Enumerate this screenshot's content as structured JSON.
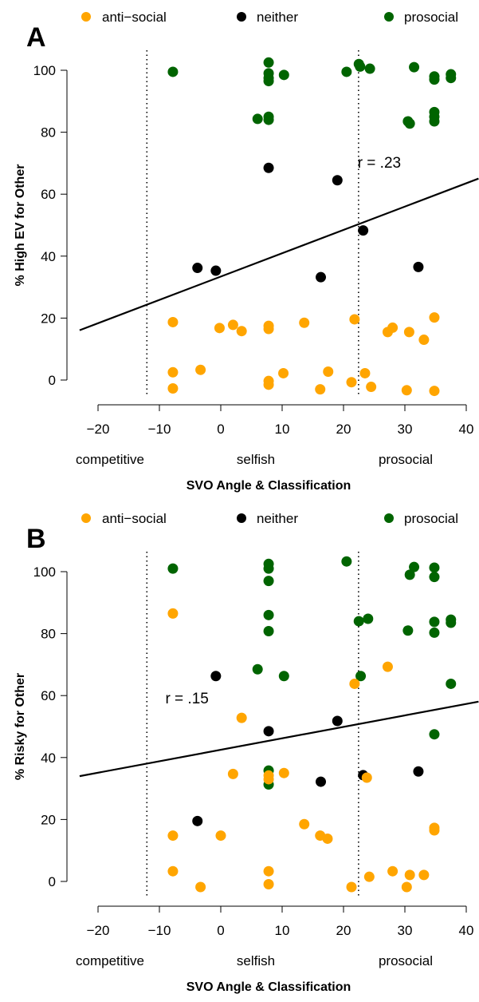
{
  "colors": {
    "anti-social": "#FFA500",
    "neither": "#000000",
    "prosocial": "#006400"
  },
  "legend": [
    {
      "key": "anti-social",
      "label": "anti−social"
    },
    {
      "key": "neither",
      "label": "neither"
    },
    {
      "key": "prosocial",
      "label": "prosocial"
    }
  ],
  "chart_data": [
    {
      "type": "scatter",
      "panel_label": "A",
      "xlabel": "SVO Angle & Classification",
      "ylabel": "% High EV for Other",
      "xlim": [
        -23,
        42
      ],
      "ylim": [
        -8,
        106
      ],
      "xticks": [
        -20,
        -10,
        0,
        10,
        20,
        30,
        40
      ],
      "xtick_labels": [
        "−20",
        "−10",
        "0",
        "10",
        "20",
        "30",
        "40"
      ],
      "yticks": [
        0,
        20,
        40,
        60,
        80,
        100
      ],
      "yticks_labels": [
        "0",
        "20",
        "40",
        "60",
        "80",
        "100"
      ],
      "ytick_labels": [
        "0",
        "20",
        "40",
        "60",
        "80",
        "100"
      ],
      "boundaries": [
        -12.04,
        22.45
      ],
      "classes": [
        "competitive",
        "selfish",
        "prosocial"
      ],
      "annotation": "r = .23",
      "fit": {
        "intercept": 33.4,
        "slope": 0.753
      },
      "series": [
        {
          "key": "prosocial",
          "points": [
            [
              -7.8,
              99.5
            ],
            [
              7.8,
              102.5
            ],
            [
              7.8,
              99
            ],
            [
              7.8,
              97.5
            ],
            [
              7.8,
              96.5
            ],
            [
              10.3,
              98.5
            ],
            [
              20.5,
              99.5
            ],
            [
              22.5,
              102
            ],
            [
              22.7,
              101.2
            ],
            [
              24.3,
              100.5
            ],
            [
              31.5,
              101
            ],
            [
              34.8,
              98
            ],
            [
              34.8,
              97
            ],
            [
              37.5,
              98.7
            ],
            [
              37.5,
              97.5
            ],
            [
              6,
              84.3
            ],
            [
              7.8,
              85
            ],
            [
              7.8,
              84
            ],
            [
              30.5,
              83.5
            ],
            [
              30.8,
              82.8
            ],
            [
              34.8,
              86.5
            ],
            [
              34.8,
              85
            ],
            [
              34.8,
              83.5
            ]
          ]
        },
        {
          "key": "neither",
          "points": [
            [
              7.8,
              68.5
            ],
            [
              19,
              64.5
            ],
            [
              23.2,
              48.3
            ],
            [
              -3.8,
              36.2
            ],
            [
              -0.8,
              35.3
            ],
            [
              16.3,
              33.2
            ],
            [
              32.2,
              36.5
            ]
          ]
        },
        {
          "key": "anti-social",
          "points": [
            [
              -7.8,
              18.7
            ],
            [
              -0.2,
              16.8
            ],
            [
              2,
              17.8
            ],
            [
              3.4,
              15.8
            ],
            [
              7.8,
              17.5
            ],
            [
              7.8,
              16.5
            ],
            [
              13.6,
              18.5
            ],
            [
              21.8,
              19.6
            ],
            [
              27.2,
              15.5
            ],
            [
              28,
              16.9
            ],
            [
              30.7,
              15.5
            ],
            [
              33.1,
              13
            ],
            [
              34.8,
              20.2
            ],
            [
              -7.8,
              2.5
            ],
            [
              -3.3,
              3.3
            ],
            [
              10.2,
              2.2
            ],
            [
              17.5,
              2.7
            ],
            [
              23.5,
              2.2
            ],
            [
              7.8,
              -0.3
            ],
            [
              7.8,
              -1.5
            ],
            [
              21.3,
              -0.7
            ],
            [
              -7.8,
              -2.7
            ],
            [
              16.2,
              -3
            ],
            [
              24.5,
              -2.2
            ],
            [
              30.3,
              -3.3
            ],
            [
              34.8,
              -3.5
            ]
          ]
        }
      ]
    },
    {
      "type": "scatter",
      "panel_label": "B",
      "xlabel": "SVO Angle & Classification",
      "ylabel": "% Risky for Other",
      "xlim": [
        -23,
        42
      ],
      "ylim": [
        -8,
        106
      ],
      "xticks": [
        -20,
        -10,
        0,
        10,
        20,
        30,
        40
      ],
      "xtick_labels": [
        "−20",
        "−10",
        "0",
        "10",
        "20",
        "30",
        "40"
      ],
      "yticks": [
        0,
        20,
        40,
        60,
        80,
        100
      ],
      "ytick_labels": [
        "0",
        "20",
        "40",
        "60",
        "80",
        "100"
      ],
      "boundaries": [
        -12.04,
        22.45
      ],
      "classes": [
        "competitive",
        "selfish",
        "prosocial"
      ],
      "annotation": "r = .15",
      "fit": {
        "intercept": 42.5,
        "slope": 0.37
      },
      "series": [
        {
          "key": "prosocial",
          "points": [
            [
              -7.8,
              101
            ],
            [
              7.8,
              102.5
            ],
            [
              7.8,
              101
            ],
            [
              7.8,
              97
            ],
            [
              20.5,
              103.3
            ],
            [
              31.5,
              101.5
            ],
            [
              30.8,
              99
            ],
            [
              34.8,
              101.3
            ],
            [
              34.8,
              98.3
            ],
            [
              7.8,
              86
            ],
            [
              7.8,
              80.8
            ],
            [
              22.5,
              84
            ],
            [
              24,
              84.8
            ],
            [
              30.5,
              81
            ],
            [
              34.8,
              83.8
            ],
            [
              34.8,
              80.3
            ],
            [
              37.5,
              84.5
            ],
            [
              37.5,
              83.5
            ],
            [
              6,
              68.5
            ],
            [
              10.3,
              66.3
            ],
            [
              22.8,
              66.3
            ],
            [
              37.5,
              63.8
            ],
            [
              34.8,
              47.5
            ],
            [
              7.8,
              35.8
            ],
            [
              7.8,
              31.3
            ]
          ]
        },
        {
          "key": "neither",
          "points": [
            [
              -0.8,
              66.3
            ],
            [
              19,
              51.8
            ],
            [
              7.8,
              48.5
            ],
            [
              23.2,
              34.3
            ],
            [
              16.3,
              32.2
            ],
            [
              32.2,
              35.5
            ],
            [
              -3.8,
              19.5
            ]
          ]
        },
        {
          "key": "anti-social",
          "points": [
            [
              -7.8,
              86.5
            ],
            [
              27.2,
              69.3
            ],
            [
              21.8,
              63.8
            ],
            [
              3.4,
              52.8
            ],
            [
              2,
              34.7
            ],
            [
              10.3,
              35
            ],
            [
              7.8,
              34.2
            ],
            [
              7.8,
              33
            ],
            [
              23.8,
              33.5
            ],
            [
              -7.8,
              14.8
            ],
            [
              0,
              14.8
            ],
            [
              13.6,
              18.5
            ],
            [
              16.2,
              14.8
            ],
            [
              17.4,
              13.8
            ],
            [
              34.8,
              17.3
            ],
            [
              34.8,
              16.5
            ],
            [
              -7.8,
              3.3
            ],
            [
              7.8,
              3.3
            ],
            [
              24.2,
              1.5
            ],
            [
              28,
              3.3
            ],
            [
              30.8,
              2.1
            ],
            [
              33.1,
              2.1
            ],
            [
              -3.3,
              -1.8
            ],
            [
              7.8,
              -0.9
            ],
            [
              21.3,
              -1.8
            ],
            [
              30.3,
              -1.8
            ]
          ]
        }
      ]
    }
  ]
}
